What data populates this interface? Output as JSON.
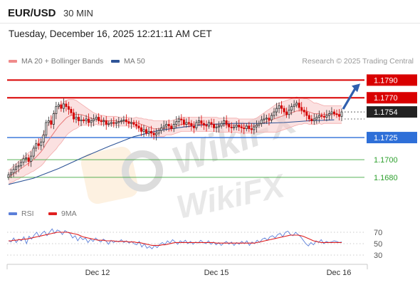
{
  "header": {
    "symbol": "EUR/USD",
    "interval": "30 MIN",
    "datetime": "Tuesday, December 16, 2025 12:21:11 AM CET",
    "credit": "Research © 2025 Trading Central"
  },
  "watermark": {
    "text": "WikiFX"
  },
  "legend": {
    "ma20_label": "MA 20 + Bollinger Bands",
    "ma20_color": "#f08b8b",
    "ma50_label": "MA 50",
    "ma50_color": "#2f5597"
  },
  "rsi_legend": {
    "rsi_label": "RSI",
    "rsi_color": "#5b7fd9",
    "ma9_label": "9MA",
    "ma9_color": "#e02020"
  },
  "levels": [
    {
      "label": "1.1790",
      "value": 1.179,
      "kind": "resistance",
      "color": "#d90000",
      "badge": true
    },
    {
      "label": "1.1770",
      "value": 1.177,
      "kind": "resistance",
      "color": "#d90000",
      "badge": true
    },
    {
      "label": "1.1725",
      "value": 1.1725,
      "kind": "pivot",
      "color": "#2e6fd8",
      "badge": true
    },
    {
      "label": "1.1700",
      "value": 1.17,
      "kind": "support",
      "color": "#2ea02e",
      "badge": false
    },
    {
      "label": "1.1680",
      "value": 1.168,
      "kind": "support",
      "color": "#2ea02e",
      "badge": false
    }
  ],
  "last_price": {
    "label": "1.1754",
    "value": 1.1754,
    "color": "#222222"
  },
  "chart_data": [
    {
      "type": "candlestick",
      "x_labels": [
        "Dec 12",
        "Dec 15",
        "Dec 16"
      ],
      "ylim": [
        1.1663,
        1.18
      ],
      "candle_up_color": "#2b2b2b",
      "candle_down_color": "#d40000",
      "close": [
        1.1683,
        1.1685,
        1.1689,
        1.1692,
        1.1693,
        1.1697,
        1.1701,
        1.1702,
        1.1698,
        1.1704,
        1.1713,
        1.1718,
        1.1716,
        1.172,
        1.1728,
        1.1742,
        1.1744,
        1.174,
        1.1752,
        1.176,
        1.1762,
        1.1758,
        1.1763,
        1.176,
        1.1757,
        1.1753,
        1.1746,
        1.1748,
        1.1744,
        1.1745,
        1.1744,
        1.1746,
        1.1742,
        1.1744,
        1.1746,
        1.1748,
        1.1744,
        1.1743,
        1.1744,
        1.174,
        1.1741,
        1.1742,
        1.1741,
        1.1742,
        1.1743,
        1.1744,
        1.1745,
        1.1743,
        1.1741,
        1.1742,
        1.174,
        1.1738,
        1.1736,
        1.1732,
        1.1734,
        1.173,
        1.1732,
        1.173,
        1.1728,
        1.173,
        1.1733,
        1.1736,
        1.1738,
        1.174,
        1.1738,
        1.1735,
        1.174,
        1.1743,
        1.1746,
        1.1745,
        1.174,
        1.1742,
        1.1741,
        1.1738,
        1.1736,
        1.1742,
        1.1744,
        1.1741,
        1.1739,
        1.1738,
        1.1742,
        1.174,
        1.1736,
        1.1737,
        1.1738,
        1.1741,
        1.1744,
        1.174,
        1.1737,
        1.1736,
        1.1737,
        1.1739,
        1.1737,
        1.1736,
        1.1735,
        1.1738,
        1.1735,
        1.1734,
        1.1737,
        1.1739,
        1.1741,
        1.1745,
        1.1746,
        1.1747,
        1.1745,
        1.175,
        1.1754,
        1.1758,
        1.1761,
        1.1758,
        1.1754,
        1.1751,
        1.1756,
        1.176,
        1.1762,
        1.1764,
        1.1759,
        1.1756,
        1.1754,
        1.175,
        1.1746,
        1.1744,
        1.1746,
        1.1748,
        1.175,
        1.1749,
        1.1748,
        1.175,
        1.1752,
        1.1754,
        1.1752,
        1.1751,
        1.1749,
        1.1754
      ],
      "ma20": [
        1.168,
        1.1682,
        1.1684,
        1.1686,
        1.1688,
        1.169,
        1.1692,
        1.1694,
        1.1696,
        1.1698,
        1.17,
        1.1703,
        1.1706,
        1.1709,
        1.1713,
        1.1718,
        1.1722,
        1.1726,
        1.173,
        1.1734,
        1.1738,
        1.1741,
        1.1744,
        1.1747,
        1.1749,
        1.175,
        1.1751,
        1.1751,
        1.1751,
        1.1751,
        1.175,
        1.1749,
        1.1748,
        1.1747,
        1.1746,
        1.1746,
        1.1745,
        1.1745,
        1.1745,
        1.1744,
        1.1744,
        1.1744,
        1.1744,
        1.1744,
        1.1743,
        1.1743,
        1.1743,
        1.1743,
        1.1743,
        1.1742,
        1.1742,
        1.1742,
        1.1741,
        1.174,
        1.1739,
        1.1738,
        1.1737,
        1.1736,
        1.1735,
        1.1735,
        1.1735,
        1.1735,
        1.1735,
        1.1736,
        1.1736,
        1.1736,
        1.1737,
        1.1738,
        1.1739,
        1.174,
        1.174,
        1.174,
        1.174,
        1.174,
        1.174,
        1.174,
        1.174,
        1.174,
        1.174,
        1.174,
        1.174,
        1.174,
        1.174,
        1.174,
        1.1739,
        1.1739,
        1.1739,
        1.1739,
        1.1739,
        1.1739,
        1.1739,
        1.1739,
        1.1738,
        1.1738,
        1.1738,
        1.1738,
        1.1738,
        1.1738,
        1.1738,
        1.1739,
        1.174,
        1.1741,
        1.1742,
        1.1743,
        1.1744,
        1.1745,
        1.1746,
        1.1747,
        1.1748,
        1.1749,
        1.175,
        1.1751,
        1.1752,
        1.1753,
        1.1754,
        1.1755,
        1.1755,
        1.1755,
        1.1755,
        1.1755,
        1.1754,
        1.1753,
        1.1752,
        1.1752,
        1.1752,
        1.1751,
        1.1751,
        1.1751,
        1.1751,
        1.1751,
        1.1751,
        1.1751,
        1.1751,
        1.1751
      ],
      "band_width": [
        0.0008,
        0.0008,
        0.0009,
        0.0009,
        0.001,
        0.001,
        0.0011,
        0.0011,
        0.0012,
        0.0012,
        0.0013,
        0.0014,
        0.0015,
        0.0016,
        0.0017,
        0.0018,
        0.0019,
        0.002,
        0.0021,
        0.0022,
        0.0022,
        0.0022,
        0.0021,
        0.002,
        0.0019,
        0.0018,
        0.0017,
        0.0016,
        0.0014,
        0.0012,
        0.0011,
        0.001,
        0.0009,
        0.0008,
        0.0007,
        0.0006,
        0.0006,
        0.0005,
        0.0005,
        0.0005,
        0.0005,
        0.0005,
        0.0005,
        0.0005,
        0.0005,
        0.0005,
        0.0005,
        0.0005,
        0.0005,
        0.0005,
        0.0005,
        0.0006,
        0.0006,
        0.0007,
        0.0007,
        0.0008,
        0.0008,
        0.0009,
        0.0009,
        0.0009,
        0.0009,
        0.0009,
        0.0009,
        0.0008,
        0.0008,
        0.0008,
        0.0008,
        0.0008,
        0.0008,
        0.0008,
        0.0008,
        0.0008,
        0.0008,
        0.0008,
        0.0008,
        0.0008,
        0.0008,
        0.0008,
        0.0008,
        0.0008,
        0.0008,
        0.0008,
        0.0008,
        0.0008,
        0.0008,
        0.0008,
        0.0008,
        0.0008,
        0.0008,
        0.0008,
        0.0008,
        0.0008,
        0.0008,
        0.0008,
        0.0008,
        0.0008,
        0.0008,
        0.0008,
        0.0008,
        0.0008,
        0.0009,
        0.001,
        0.0011,
        0.0012,
        0.0013,
        0.0014,
        0.0015,
        0.0016,
        0.0016,
        0.0016,
        0.0016,
        0.0016,
        0.0016,
        0.0016,
        0.0016,
        0.0016,
        0.0015,
        0.0015,
        0.0014,
        0.0014,
        0.0014,
        0.0013,
        0.0012,
        0.0012,
        0.0011,
        0.0011,
        0.001,
        0.001,
        0.001,
        0.001,
        0.001,
        0.001,
        0.001,
        0.001
      ],
      "ma50_points": [
        [
          0,
          1.1672
        ],
        [
          10,
          1.1679
        ],
        [
          20,
          1.169
        ],
        [
          30,
          1.1703
        ],
        [
          40,
          1.1715
        ],
        [
          50,
          1.1726
        ],
        [
          60,
          1.1733
        ],
        [
          70,
          1.1737
        ],
        [
          80,
          1.174
        ],
        [
          90,
          1.1741
        ],
        [
          100,
          1.1741
        ],
        [
          110,
          1.1742
        ],
        [
          120,
          1.1744
        ],
        [
          130,
          1.1745
        ]
      ]
    },
    {
      "type": "line",
      "title": "RSI",
      "ylim": [
        25,
        80
      ],
      "y_ticks": [
        70,
        50,
        30
      ],
      "series": [
        {
          "name": "RSI",
          "values": [
            55,
            53,
            60,
            52,
            58,
            55,
            62,
            50,
            63,
            58,
            65,
            70,
            62,
            68,
            72,
            64,
            70,
            76,
            68,
            74,
            72,
            66,
            73,
            70,
            68,
            60,
            64,
            55,
            62,
            57,
            60,
            52,
            58,
            54,
            60,
            56,
            53,
            58,
            55,
            49,
            56,
            52,
            55,
            53,
            57,
            52,
            55,
            51,
            54,
            50,
            48,
            54,
            44,
            50,
            42,
            45,
            41,
            47,
            43,
            49,
            52,
            48,
            55,
            51,
            57,
            53,
            49,
            55,
            52,
            56,
            50,
            54,
            49,
            53,
            51,
            56,
            52,
            50,
            55,
            49,
            53,
            48,
            52,
            47,
            51,
            54,
            49,
            53,
            47,
            52,
            49,
            54,
            50,
            55,
            47,
            53,
            50,
            56,
            52,
            58,
            60,
            56,
            62,
            64,
            60,
            66,
            68,
            62,
            70,
            72,
            66,
            64,
            70,
            66,
            62,
            56,
            50,
            46,
            52,
            48,
            55,
            52,
            57,
            50,
            54,
            52,
            53,
            55,
            54,
            52,
            53
          ]
        },
        {
          "name": "9MA",
          "values": [
            55,
            55,
            56,
            56,
            57,
            57,
            58,
            58,
            59,
            60,
            61,
            62,
            63,
            64,
            65,
            66,
            67,
            68,
            69,
            70,
            70,
            70,
            70,
            70,
            69,
            68,
            67,
            66,
            64,
            62,
            61,
            60,
            59,
            58,
            57,
            56,
            56,
            56,
            55,
            55,
            55,
            55,
            54,
            54,
            54,
            54,
            54,
            53,
            53,
            53,
            52,
            52,
            51,
            50,
            49,
            48,
            47,
            47,
            47,
            47,
            48,
            48,
            49,
            50,
            51,
            52,
            52,
            52,
            52,
            52,
            52,
            52,
            52,
            52,
            52,
            52,
            52,
            52,
            52,
            52,
            52,
            51,
            51,
            51,
            51,
            51,
            51,
            51,
            51,
            51,
            51,
            51,
            51,
            51,
            51,
            51,
            51,
            52,
            53,
            54,
            55,
            56,
            57,
            58,
            59,
            60,
            61,
            62,
            63,
            64,
            65,
            65,
            65,
            65,
            64,
            63,
            61,
            59,
            57,
            55,
            54,
            53,
            52,
            52,
            52,
            52,
            52,
            52,
            52,
            52,
            52
          ]
        }
      ]
    }
  ]
}
